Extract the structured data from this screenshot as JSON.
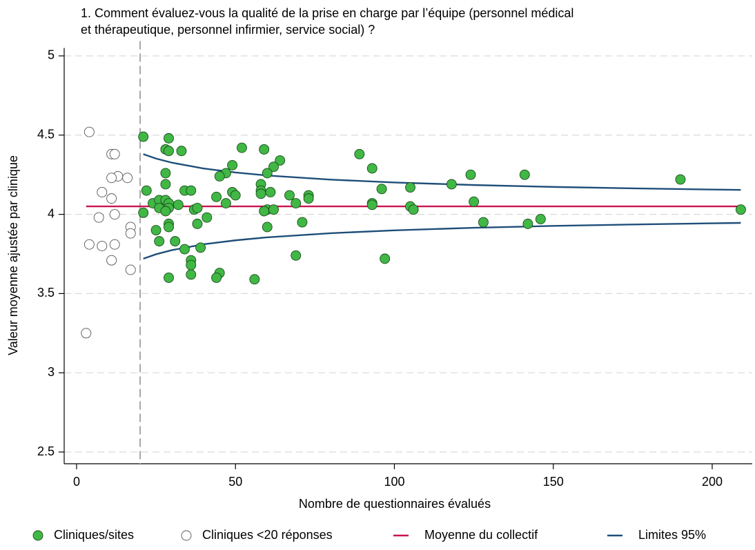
{
  "chart_data": {
    "type": "scatter",
    "title": [
      "1. Comment évaluez-vous la qualité de la prise en charge par l’équipe (personnel médical",
      "et thérapeutique, personnel infirmier, service social) ?"
    ],
    "x_label": "Nombre de questionnaires évalués",
    "y_label": "Valeur moyenne ajustée par clinique",
    "xlim": [
      -3.9,
      212.6
    ],
    "xticks": [
      0,
      50,
      100,
      150,
      200
    ],
    "ylim": [
      2.426,
      5.05
    ],
    "yticks": [
      2.5,
      3,
      3.5,
      4,
      4.5,
      5
    ],
    "grid": true,
    "threshold_x": 20,
    "legend": "bottom",
    "series": [
      {
        "name": "Cliniques/sites",
        "type": "scatter",
        "color": "#41b746",
        "x": [
          21,
          29,
          28,
          29,
          33,
          52,
          59,
          89,
          93,
          28,
          49,
          47,
          45,
          64,
          62,
          60,
          22,
          28,
          34,
          36,
          49,
          50,
          44,
          58,
          58,
          58,
          61,
          67,
          73,
          73,
          96,
          105,
          118,
          124,
          141,
          190,
          24,
          26,
          28,
          29,
          32,
          26,
          29,
          28,
          37,
          38,
          47,
          60,
          59,
          62,
          69,
          93,
          93,
          105,
          106,
          125,
          209,
          21,
          41,
          25,
          29,
          29,
          38,
          60,
          71,
          128,
          142,
          146,
          26,
          31,
          39,
          34,
          36,
          36,
          69,
          97,
          36,
          45,
          29,
          44,
          56
        ],
        "values": [
          4.49,
          4.48,
          4.41,
          4.4,
          4.4,
          4.42,
          4.41,
          4.38,
          4.29,
          4.26,
          4.31,
          4.26,
          4.24,
          4.34,
          4.3,
          4.26,
          4.15,
          4.19,
          4.15,
          4.15,
          4.14,
          4.12,
          4.11,
          4.19,
          4.15,
          4.13,
          4.14,
          4.12,
          4.12,
          4.1,
          4.16,
          4.17,
          4.19,
          4.25,
          4.25,
          4.22,
          4.07,
          4.09,
          4.09,
          4.07,
          4.06,
          4.04,
          4.04,
          4.02,
          4.03,
          4.04,
          4.07,
          4.03,
          4.02,
          4.03,
          4.07,
          4.07,
          4.06,
          4.05,
          4.03,
          4.08,
          4.03,
          4.01,
          3.98,
          3.9,
          3.94,
          3.92,
          3.94,
          3.92,
          3.95,
          3.95,
          3.94,
          3.97,
          3.83,
          3.83,
          3.79,
          3.78,
          3.71,
          3.68,
          3.74,
          3.72,
          3.62,
          3.63,
          3.6,
          3.6,
          3.59
        ]
      },
      {
        "name": "Cliniques <20 réponses",
        "type": "scatter",
        "color": "#ffffff",
        "x": [
          4,
          11,
          12,
          13,
          11,
          16,
          8,
          11,
          12,
          7,
          17,
          17,
          4,
          8,
          12,
          11,
          17,
          3
        ],
        "values": [
          4.52,
          4.38,
          4.38,
          4.24,
          4.23,
          4.23,
          4.14,
          4.1,
          4.0,
          3.98,
          3.92,
          3.88,
          3.81,
          3.8,
          3.81,
          3.71,
          3.65,
          3.25
        ]
      },
      {
        "name": "Moyenne du collectif",
        "type": "line",
        "color": "#c8134f",
        "x": [
          3,
          209
        ],
        "values": [
          4.05,
          4.05
        ]
      },
      {
        "name": "Limites 95%",
        "type": "line",
        "color": "#1f4e79",
        "x": [
          21,
          25,
          30,
          40,
          50,
          60,
          80,
          100,
          125,
          150,
          175,
          209
        ],
        "values": [
          4.38,
          4.352,
          4.326,
          4.289,
          4.264,
          4.245,
          4.219,
          4.201,
          4.185,
          4.173,
          4.164,
          4.154
        ],
        "lower_values": [
          3.72,
          3.748,
          3.774,
          3.811,
          3.836,
          3.855,
          3.881,
          3.899,
          3.915,
          3.927,
          3.936,
          3.946
        ]
      }
    ]
  }
}
